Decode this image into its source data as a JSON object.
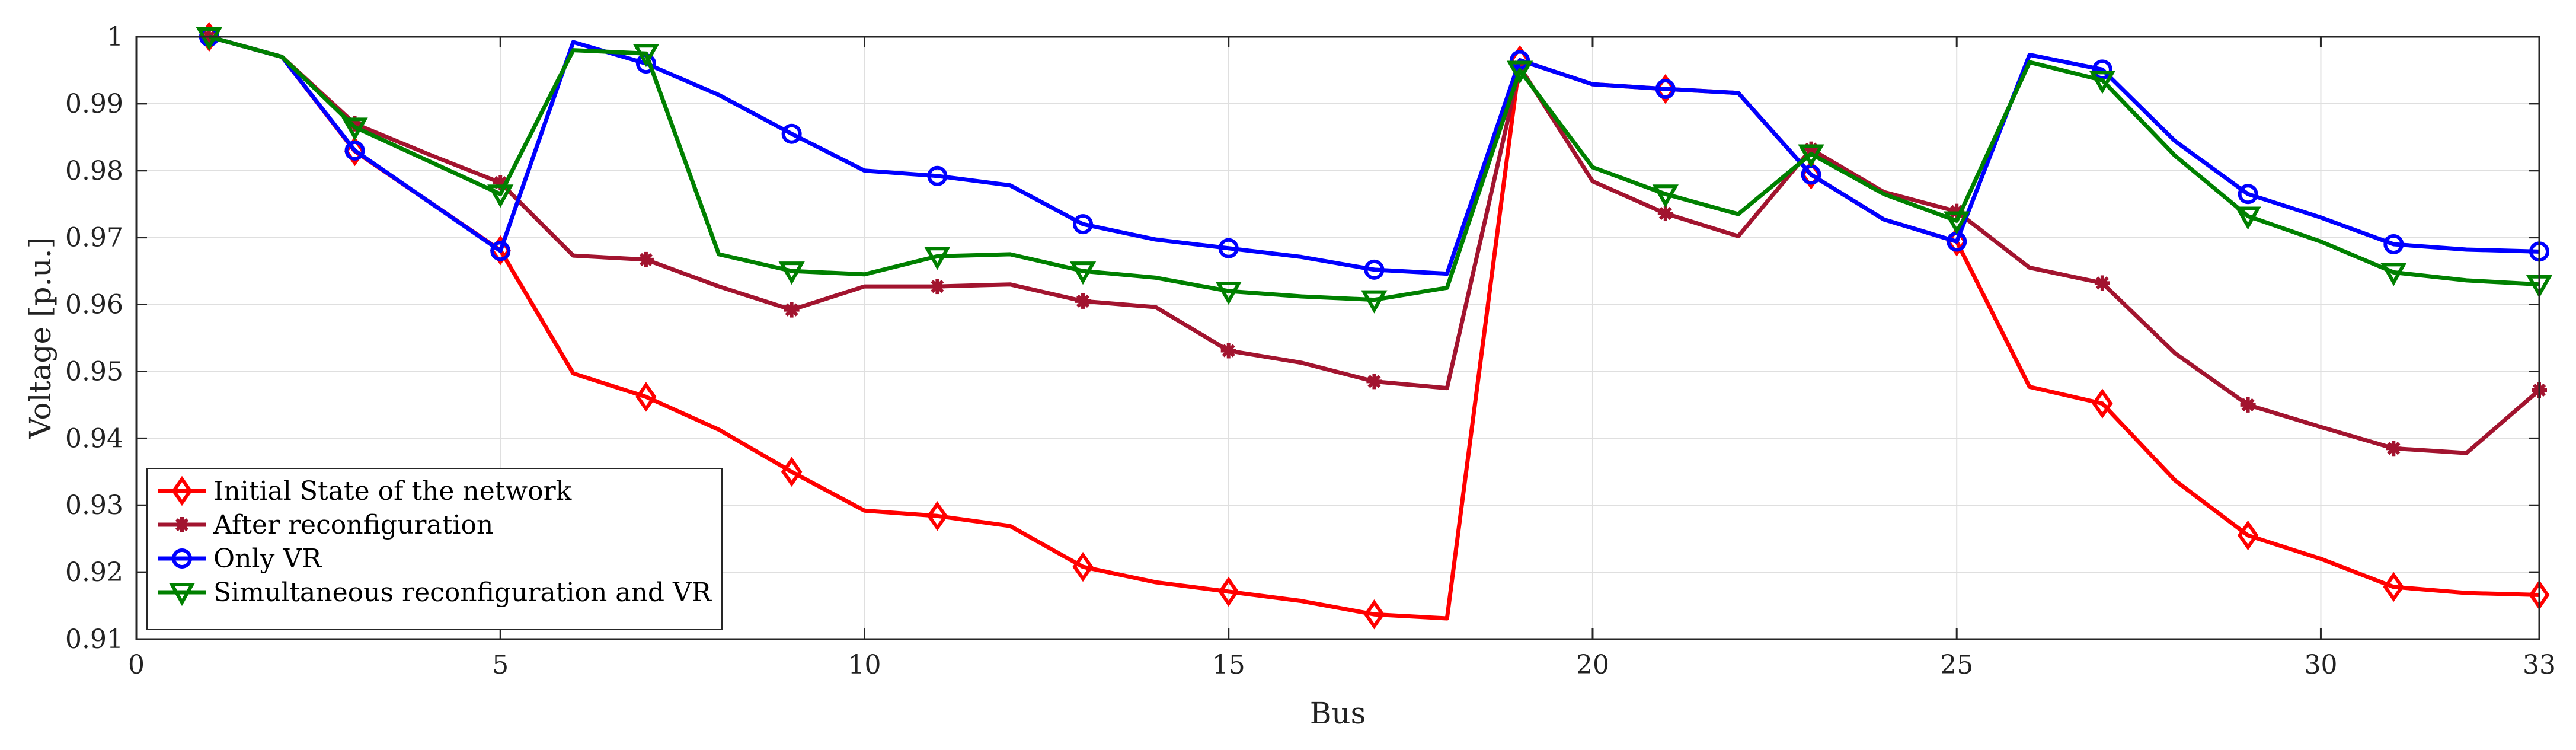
{
  "chart_data": {
    "type": "line",
    "xlabel": "Bus",
    "ylabel": "Voltage [p.u.]",
    "xlim": [
      0,
      33
    ],
    "ylim": [
      0.91,
      1.0
    ],
    "xticks": [
      0,
      5,
      10,
      15,
      20,
      25,
      30,
      33
    ],
    "xtick_labels": [
      "0",
      "5",
      "10",
      "15",
      "20",
      "25",
      "30",
      "33"
    ],
    "yticks": [
      0.91,
      0.92,
      0.93,
      0.94,
      0.95,
      0.96,
      0.97,
      0.98,
      0.99,
      1.0
    ],
    "ytick_labels": [
      "0.91",
      "0.92",
      "0.93",
      "0.94",
      "0.95",
      "0.96",
      "0.97",
      "0.98",
      "0.99",
      "1"
    ],
    "grid": true,
    "legend_position": "bottom-left",
    "x": [
      1,
      2,
      3,
      4,
      5,
      6,
      7,
      8,
      9,
      10,
      11,
      12,
      13,
      14,
      15,
      16,
      17,
      18,
      19,
      20,
      21,
      22,
      23,
      24,
      25,
      26,
      27,
      28,
      29,
      30,
      31,
      32,
      33
    ],
    "series": [
      {
        "name": "Initial State of the network",
        "color": "#ff0000",
        "marker": "diamond",
        "values": [
          1.0,
          0.997,
          0.9829,
          0.9755,
          0.9681,
          0.9497,
          0.9462,
          0.9413,
          0.935,
          0.9292,
          0.9284,
          0.9269,
          0.9208,
          0.9185,
          0.9171,
          0.9157,
          0.9137,
          0.9131,
          0.9965,
          0.9929,
          0.9922,
          0.9916,
          0.9794,
          0.9727,
          0.9694,
          0.9477,
          0.9452,
          0.9337,
          0.9255,
          0.922,
          0.9178,
          0.9169,
          0.9166
        ]
      },
      {
        "name": "After reconfiguration",
        "color": "#a2142f",
        "marker": "asterisk",
        "values": [
          1.0,
          0.997,
          0.987,
          0.9825,
          0.9782,
          0.9673,
          0.9667,
          0.9627,
          0.9592,
          0.9627,
          0.9627,
          0.963,
          0.9605,
          0.9596,
          0.9531,
          0.9513,
          0.9485,
          0.9475,
          0.9955,
          0.9784,
          0.9736,
          0.9702,
          0.9832,
          0.9768,
          0.9739,
          0.9655,
          0.9632,
          0.9527,
          0.945,
          0.9417,
          0.9385,
          0.9378,
          0.9472
        ]
      },
      {
        "name": "Only VR",
        "color": "#0000ff",
        "marker": "circle",
        "values": [
          1.0,
          0.997,
          0.983,
          0.9755,
          0.968,
          0.9992,
          0.996,
          0.9913,
          0.9855,
          0.98,
          0.9792,
          0.9778,
          0.972,
          0.9697,
          0.9684,
          0.9671,
          0.9652,
          0.9646,
          0.9965,
          0.9929,
          0.9922,
          0.9916,
          0.9794,
          0.9727,
          0.9694,
          0.9973,
          0.9951,
          0.9844,
          0.9765,
          0.973,
          0.969,
          0.9682,
          0.9679
        ]
      },
      {
        "name": "Simultaneous reconfiguration and VR",
        "color": "#008000",
        "marker": "triangle-down",
        "values": [
          1.0,
          0.997,
          0.9865,
          0.9815,
          0.9765,
          0.998,
          0.9975,
          0.9675,
          0.965,
          0.9645,
          0.9672,
          0.9675,
          0.965,
          0.964,
          0.962,
          0.9612,
          0.9607,
          0.9625,
          0.995,
          0.9805,
          0.9765,
          0.9735,
          0.9825,
          0.9765,
          0.9725,
          0.9962,
          0.9935,
          0.9822,
          0.9732,
          0.9694,
          0.9648,
          0.9636,
          0.963
        ]
      }
    ]
  }
}
